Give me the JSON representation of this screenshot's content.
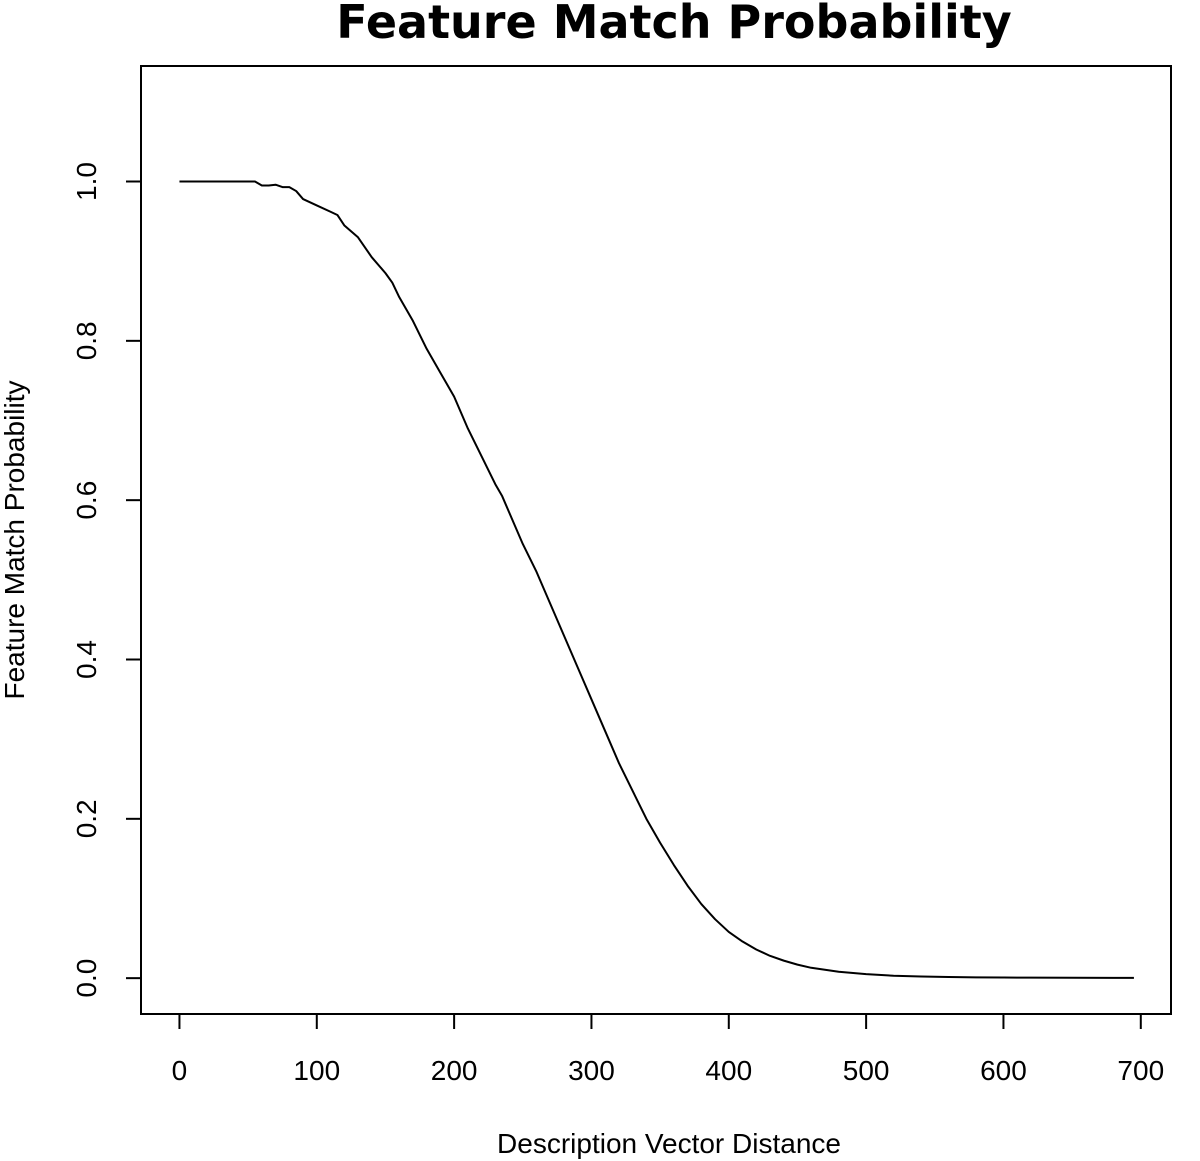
{
  "chart_data": {
    "type": "line",
    "title": "Feature Match Probability",
    "xlabel": "Description Vector Distance",
    "ylabel": "Feature Match Probability",
    "xlim": [
      -28,
      722
    ],
    "ylim": [
      -0.045,
      1.145
    ],
    "x_ticks": [
      0,
      100,
      200,
      300,
      400,
      500,
      600,
      700
    ],
    "y_ticks": [
      0.0,
      0.2,
      0.4,
      0.6,
      0.8,
      1.0
    ],
    "x_tick_labels": [
      "0",
      "100",
      "200",
      "300",
      "400",
      "500",
      "600",
      "700"
    ],
    "y_tick_labels": [
      "0.0",
      "0.2",
      "0.4",
      "0.6",
      "0.8",
      "1.0"
    ],
    "grid": false,
    "series": [
      {
        "x": [
          0,
          20,
          40,
          55,
          60,
          65,
          70,
          75,
          80,
          85,
          90,
          100,
          110,
          115,
          120,
          130,
          140,
          150,
          155,
          160,
          170,
          180,
          190,
          200,
          210,
          220,
          230,
          235,
          240,
          250,
          260,
          270,
          280,
          290,
          300,
          310,
          320,
          330,
          340,
          350,
          360,
          370,
          380,
          390,
          400,
          410,
          420,
          430,
          440,
          450,
          460,
          480,
          500,
          520,
          540,
          560,
          580,
          600,
          620,
          650,
          680,
          695
        ],
        "y": [
          1.0,
          1.0,
          1.0,
          1.0,
          0.995,
          0.995,
          0.996,
          0.993,
          0.993,
          0.988,
          0.978,
          0.97,
          0.962,
          0.958,
          0.945,
          0.93,
          0.905,
          0.885,
          0.873,
          0.855,
          0.825,
          0.79,
          0.76,
          0.73,
          0.69,
          0.655,
          0.62,
          0.605,
          0.585,
          0.545,
          0.51,
          0.47,
          0.43,
          0.39,
          0.35,
          0.31,
          0.27,
          0.235,
          0.2,
          0.17,
          0.142,
          0.116,
          0.093,
          0.074,
          0.058,
          0.046,
          0.036,
          0.028,
          0.022,
          0.017,
          0.013,
          0.008,
          0.005,
          0.003,
          0.002,
          0.0015,
          0.001,
          0.0008,
          0.0006,
          0.0005,
          0.0004,
          0.0004
        ]
      }
    ]
  }
}
